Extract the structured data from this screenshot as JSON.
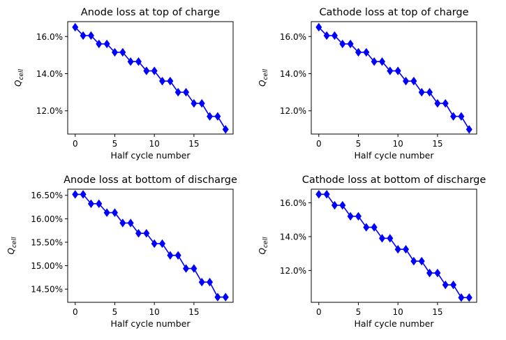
{
  "colors": {
    "series": "#0000ff",
    "axes": "#000000",
    "background": "#ffffff"
  },
  "chart_data": [
    {
      "type": "line",
      "title": "Anode loss at top of charge",
      "xlabel": "Half cycle number",
      "ylabel_main": "Q",
      "ylabel_sub": "cell",
      "marker": "diamond",
      "grid": false,
      "xlim": [
        -0.95,
        19.95
      ],
      "ylim": [
        10.75,
        16.8
      ],
      "xticks": [
        0,
        5,
        10,
        15
      ],
      "xtick_labels": [
        "0",
        "5",
        "10",
        "15"
      ],
      "yticks": [
        12,
        14,
        16
      ],
      "ytick_labels": [
        "12.0%",
        "14.0%",
        "16.0%"
      ],
      "x": [
        0,
        1,
        2,
        3,
        4,
        5,
        6,
        7,
        8,
        9,
        10,
        11,
        12,
        13,
        14,
        15,
        16,
        17,
        18,
        19
      ],
      "y": [
        16.5,
        16.05,
        16.05,
        15.6,
        15.6,
        15.15,
        15.15,
        14.65,
        14.65,
        14.15,
        14.15,
        13.6,
        13.6,
        13.0,
        13.0,
        12.4,
        12.4,
        11.7,
        11.7,
        11.0
      ]
    },
    {
      "type": "line",
      "title": "Cathode loss at top of charge",
      "xlabel": "Half cycle number",
      "ylabel_main": "Q",
      "ylabel_sub": "cell",
      "marker": "diamond",
      "grid": false,
      "xlim": [
        -0.95,
        19.95
      ],
      "ylim": [
        10.75,
        16.8
      ],
      "xticks": [
        0,
        5,
        10,
        15
      ],
      "xtick_labels": [
        "0",
        "5",
        "10",
        "15"
      ],
      "yticks": [
        12,
        14,
        16
      ],
      "ytick_labels": [
        "12.0%",
        "14.0%",
        "16.0%"
      ],
      "x": [
        0,
        1,
        2,
        3,
        4,
        5,
        6,
        7,
        8,
        9,
        10,
        11,
        12,
        13,
        14,
        15,
        16,
        17,
        18,
        19
      ],
      "y": [
        16.5,
        16.05,
        16.05,
        15.6,
        15.6,
        15.15,
        15.15,
        14.65,
        14.65,
        14.15,
        14.15,
        13.6,
        13.6,
        13.0,
        13.0,
        12.4,
        12.4,
        11.7,
        11.7,
        11.0
      ]
    },
    {
      "type": "line",
      "title": "Anode loss at bottom of discharge",
      "xlabel": "Half cycle number",
      "ylabel_main": "Q",
      "ylabel_sub": "cell",
      "marker": "diamond",
      "grid": false,
      "xlim": [
        -0.95,
        19.95
      ],
      "ylim": [
        14.22,
        16.63
      ],
      "xticks": [
        0,
        5,
        10,
        15
      ],
      "xtick_labels": [
        "0",
        "5",
        "10",
        "15"
      ],
      "yticks": [
        14.5,
        15.0,
        15.5,
        16.0,
        16.5
      ],
      "ytick_labels": [
        "14.50%",
        "15.00%",
        "15.50%",
        "16.00%",
        "16.50%"
      ],
      "x": [
        0,
        1,
        2,
        3,
        4,
        5,
        6,
        7,
        8,
        9,
        10,
        11,
        12,
        13,
        14,
        15,
        16,
        17,
        18,
        19
      ],
      "y": [
        16.52,
        16.52,
        16.32,
        16.32,
        16.13,
        16.13,
        15.91,
        15.91,
        15.69,
        15.69,
        15.47,
        15.47,
        15.22,
        15.22,
        14.94,
        14.94,
        14.65,
        14.65,
        14.33,
        14.33
      ]
    },
    {
      "type": "line",
      "title": "Cathode loss at bottom of discharge",
      "xlabel": "Half cycle number",
      "ylabel_main": "Q",
      "ylabel_sub": "cell",
      "marker": "diamond",
      "grid": false,
      "xlim": [
        -0.95,
        19.95
      ],
      "ylim": [
        10.12,
        16.8
      ],
      "xticks": [
        0,
        5,
        10,
        15
      ],
      "xtick_labels": [
        "0",
        "5",
        "10",
        "15"
      ],
      "yticks": [
        12,
        14,
        16
      ],
      "ytick_labels": [
        "12.0%",
        "14.0%",
        "16.0%"
      ],
      "x": [
        0,
        1,
        2,
        3,
        4,
        5,
        6,
        7,
        8,
        9,
        10,
        11,
        12,
        13,
        14,
        15,
        16,
        17,
        18,
        19
      ],
      "y": [
        16.5,
        16.5,
        15.85,
        15.85,
        15.2,
        15.2,
        14.55,
        14.55,
        13.9,
        13.9,
        13.25,
        13.25,
        12.55,
        12.55,
        11.85,
        11.85,
        11.15,
        11.15,
        10.4,
        10.4
      ]
    }
  ]
}
